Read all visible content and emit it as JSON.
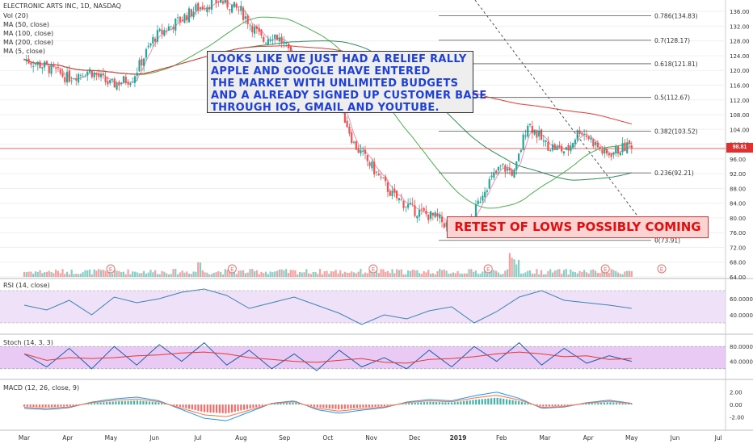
{
  "legend": {
    "symbol": "ELECTRONIC ARTS INC, 1D, NASDAQ",
    "vol": "Vol (20)",
    "ma50": "MA (50, close)",
    "ma100": "MA (100, close)",
    "ma200": "MA (200, close)",
    "ma5": "MA (5, close)"
  },
  "annotations": {
    "note_lines": [
      "LOOKS LIKE WE JUST HAD A RELIEF RALLY",
      "APPLE AND GOOGLE HAVE ENTERED",
      "THE MARKET WITH UNLIMITED BUDGETS",
      "AND A ALREADY SIGNED UP CUSTOMER BASE",
      "THROUGH IOS, GMAIL AND YOUTUBE."
    ],
    "warning": "RETEST OF LOWS POSSIBLY COMING",
    "earnings_marker": "E"
  },
  "price_label": "98.81",
  "panes": {
    "rsi": "RSI (14, close)",
    "stoch": "Stoch (14, 3, 3)",
    "macd": "MACD (12, 26, close, 9)"
  },
  "colors": {
    "up": "#26a69a",
    "down": "#ef5350",
    "ma_pink": "#f48fb1",
    "ma_green": "#4caf50",
    "ma_red": "#e53935",
    "note_text": "#1e3fd8",
    "warning_text": "#e01010",
    "price_line": "#e53935",
    "rsi_band": "#e8d6f5",
    "stoch_band": "#e0b3f0"
  },
  "chart_data": [
    {
      "type": "candlestick",
      "x_labels": [
        "Mar",
        "Apr",
        "May",
        "Jun",
        "Jul",
        "Aug",
        "Sep",
        "Oct",
        "Nov",
        "Dec",
        "2019",
        "Feb",
        "Mar",
        "Apr",
        "May",
        "Jun",
        "Jul"
      ],
      "y_ticks": [
        136,
        132,
        128,
        124,
        120,
        116,
        112,
        108,
        104,
        100,
        96,
        92,
        88,
        84,
        80,
        76,
        72,
        68,
        64
      ],
      "y_range": [
        64,
        138
      ],
      "current_price": 98.81,
      "price_path": [
        [
          0,
          123
        ],
        [
          0.5,
          121
        ],
        [
          1,
          118
        ],
        [
          1.5,
          120
        ],
        [
          2,
          116
        ],
        [
          2.5,
          118
        ],
        [
          3,
          129
        ],
        [
          3.5,
          133
        ],
        [
          4,
          137
        ],
        [
          4.5,
          139
        ],
        [
          5,
          136
        ],
        [
          5.25,
          132
        ],
        [
          5.5,
          128
        ],
        [
          5.75,
          130
        ],
        [
          6,
          127
        ],
        [
          6.25,
          120
        ],
        [
          6.5,
          122
        ],
        [
          6.75,
          120
        ],
        [
          7,
          118
        ],
        [
          7.3,
          110
        ],
        [
          7.6,
          100
        ],
        [
          8,
          94
        ],
        [
          8.5,
          86
        ],
        [
          9,
          82
        ],
        [
          9.5,
          80
        ],
        [
          10,
          76
        ],
        [
          10.3,
          79
        ],
        [
          10.6,
          88
        ],
        [
          11,
          94
        ],
        [
          11.3,
          92
        ],
        [
          11.6,
          106
        ],
        [
          12,
          100
        ],
        [
          12.5,
          98
        ],
        [
          12.8,
          104
        ],
        [
          13,
          102
        ],
        [
          13.4,
          97
        ],
        [
          13.8,
          99
        ],
        [
          14,
          100
        ]
      ],
      "fibonacci": [
        {
          "label": "0.786(134.83)",
          "value": 134.83
        },
        {
          "label": "0.7(128.17)",
          "value": 128.17
        },
        {
          "label": "0.618(121.81)",
          "value": 121.81
        },
        {
          "label": "0.5(112.67)",
          "value": 112.67
        },
        {
          "label": "0.382(103.52)",
          "value": 103.52
        },
        {
          "label": "0.236(92.21)",
          "value": 92.21
        },
        {
          "label": "0(73.91)",
          "value": 73.91
        }
      ]
    },
    {
      "type": "line",
      "name": "RSI (14, close)",
      "y_ticks": [
        "60.0000",
        "40.0000"
      ],
      "y_range": [
        20,
        80
      ],
      "band": [
        30,
        70
      ],
      "values": [
        52,
        46,
        58,
        40,
        62,
        55,
        60,
        68,
        72,
        64,
        48,
        55,
        62,
        52,
        42,
        28,
        40,
        35,
        45,
        50,
        30,
        44,
        62,
        70,
        58,
        55,
        52,
        48
      ]
    },
    {
      "type": "line",
      "name": "Stoch (14, 3, 3)",
      "y_ticks": [
        "80.0000",
        "40.0000"
      ],
      "y_range": [
        0,
        100
      ],
      "band": [
        20,
        80
      ],
      "values": [
        60,
        25,
        75,
        20,
        80,
        30,
        85,
        40,
        90,
        30,
        70,
        20,
        60,
        15,
        70,
        25,
        50,
        20,
        70,
        25,
        80,
        40,
        90,
        30,
        75,
        35,
        55,
        40
      ]
    },
    {
      "type": "bar",
      "name": "MACD (12, 26, close, 9)",
      "y_ticks": [
        "2.00",
        "0.00",
        "-2.00"
      ],
      "y_range": [
        -4,
        3
      ],
      "values": [
        -0.6,
        -0.8,
        -0.5,
        0.4,
        0.9,
        1.2,
        0.6,
        -0.8,
        -2.2,
        -2.6,
        -1.2,
        0.2,
        0.6,
        -0.8,
        -1.4,
        -0.9,
        -0.5,
        0.4,
        0.8,
        0.6,
        1.4,
        2.0,
        1.0,
        -0.6,
        -0.4,
        0.3,
        0.7,
        0.2
      ]
    }
  ]
}
